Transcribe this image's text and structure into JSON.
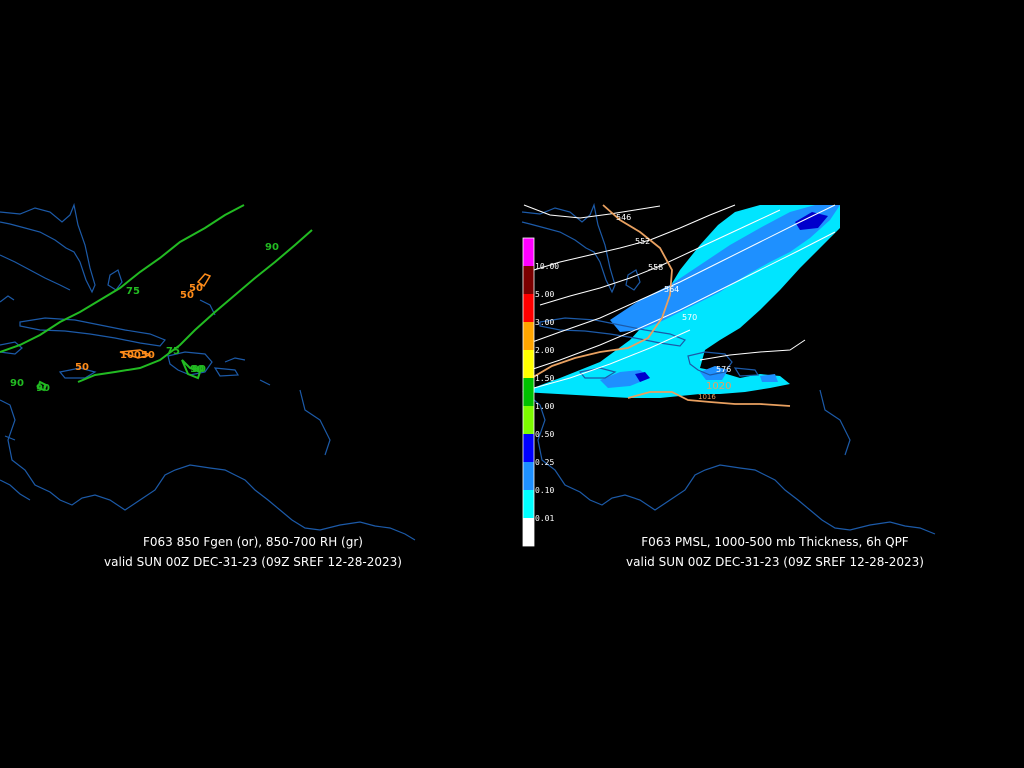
{
  "left_panel": {
    "caption_line1": "F063 850 Fgen (or), 850-700 RH (gr)",
    "caption_line2": "valid SUN 00Z DEC-31-23 (09Z SREF 12-28-2023)",
    "rh_labels": [
      "75",
      "90",
      "90",
      "75",
      "90",
      "90",
      "90"
    ],
    "fgen_labels": [
      "50",
      "50",
      "50",
      "10050"
    ]
  },
  "right_panel": {
    "caption_line1": "F063 PMSL, 1000-500 mb Thickness, 6h QPF",
    "caption_line2": "valid SUN 00Z DEC-31-23 (09Z SREF 12-28-2023)",
    "thickness_labels": [
      "546",
      "552",
      "558",
      "564",
      "570",
      "576"
    ],
    "pressure_labels": [
      "1020",
      "1016"
    ],
    "qpf_scale": {
      "labels": [
        "10.00",
        "5.00",
        "3.00",
        "2.00",
        "1.50",
        "1.00",
        "0.50",
        "0.25",
        "0.10",
        "0.01"
      ],
      "colors": [
        "#ff00ff",
        "#7a0000",
        "#ff0000",
        "#ffa500",
        "#ffff00",
        "#00c000",
        "#7cfc00",
        "#0000ff",
        "#1e90ff",
        "#00ffff",
        "#ffffff"
      ]
    }
  },
  "colors": {
    "background": "#000000",
    "coastline": "#1c5aa8",
    "rh_contour": "#22bb22",
    "fgen_contour": "#ff8c1a",
    "thickness": "#ffffff",
    "pmsl": "#e8a060",
    "qpf_light": "#00e5ff",
    "qpf_medium": "#1e90ff",
    "qpf_heavy": "#0000cc"
  }
}
